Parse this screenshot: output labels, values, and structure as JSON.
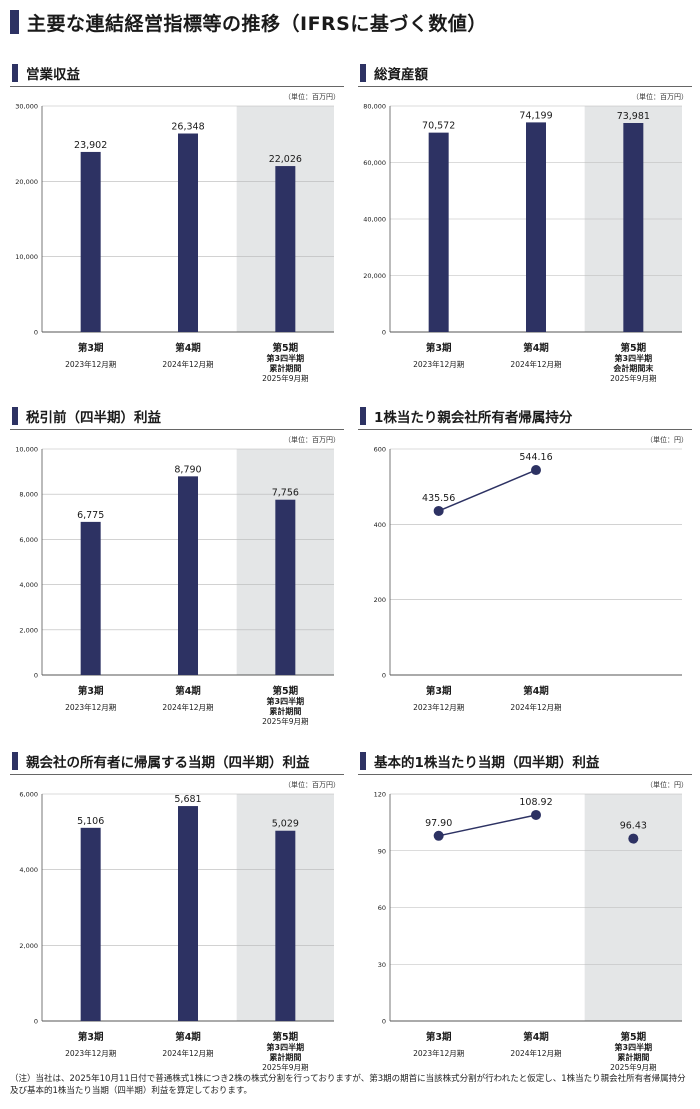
{
  "page_title": "主要な連結経営指標等の推移（IFRSに基づく数値）",
  "footnote": "（注）当社は、2025年10月11日付で普通株式1株につき2株の株式分割を行っておりますが、第3期の期首に当該株式分割が行われたと仮定し、1株当たり親会社所有者帰属持分及び基本的1株当たり当期（四半期）利益を算定しております。",
  "colors": {
    "bar": "#2d3263",
    "shade": "#e4e6e7",
    "grid": "#b8b8b8",
    "title_bar": "#2d3263"
  },
  "chart_data": [
    {
      "id": "revenue",
      "type": "bar",
      "title": "営業収益",
      "unit": "（単位：百万円）",
      "categories": [
        [
          "第3期",
          "2023年12月期"
        ],
        [
          "第4期",
          "2024年12月期"
        ],
        [
          "第5期",
          "第3四半期",
          "累計期間",
          "2025年9月期"
        ]
      ],
      "values": [
        23902,
        26348,
        22026
      ],
      "value_labels": [
        "23,902",
        "26,348",
        "22,026"
      ],
      "ylim": [
        0,
        30000
      ],
      "yticks": [
        0,
        10000,
        20000,
        30000
      ],
      "ytick_labels": [
        "0",
        "10,000",
        "20,000",
        "30,000"
      ],
      "shaded_category": 2
    },
    {
      "id": "total-assets",
      "type": "bar",
      "title": "総資産額",
      "unit": "（単位：百万円）",
      "categories": [
        [
          "第3期",
          "2023年12月期"
        ],
        [
          "第4期",
          "2024年12月期"
        ],
        [
          "第5期",
          "第3四半期",
          "会計期間末",
          "2025年9月期"
        ]
      ],
      "values": [
        70572,
        74199,
        73981
      ],
      "value_labels": [
        "70,572",
        "74,199",
        "73,981"
      ],
      "ylim": [
        0,
        80000
      ],
      "yticks": [
        0,
        20000,
        40000,
        60000,
        80000
      ],
      "ytick_labels": [
        "0",
        "20,000",
        "40,000",
        "60,000",
        "80,000"
      ],
      "shaded_category": 2
    },
    {
      "id": "pretax-profit",
      "type": "bar",
      "title": "税引前（四半期）利益",
      "unit": "（単位：百万円）",
      "categories": [
        [
          "第3期",
          "2023年12月期"
        ],
        [
          "第4期",
          "2024年12月期"
        ],
        [
          "第5期",
          "第3四半期",
          "累計期間",
          "2025年9月期"
        ]
      ],
      "values": [
        6775,
        8790,
        7756
      ],
      "value_labels": [
        "6,775",
        "8,790",
        "7,756"
      ],
      "ylim": [
        0,
        10000
      ],
      "yticks": [
        0,
        2000,
        4000,
        6000,
        8000,
        10000
      ],
      "ytick_labels": [
        "0",
        "2,000",
        "4,000",
        "6,000",
        "8,000",
        "10,000"
      ],
      "shaded_category": 2
    },
    {
      "id": "bps",
      "type": "line",
      "title": "1株当たり親会社所有者帰属持分",
      "unit": "（単位：円）",
      "categories": [
        [
          "第3期",
          "2023年12月期"
        ],
        [
          "第4期",
          "2024年12月期"
        ]
      ],
      "n_slots": 3,
      "values": [
        435.56,
        544.16
      ],
      "value_labels": [
        "435.56",
        "544.16"
      ],
      "connect": [
        0,
        1
      ],
      "ylim": [
        0,
        600
      ],
      "yticks": [
        0,
        200,
        400,
        600
      ],
      "ytick_labels": [
        "0",
        "200",
        "400",
        "600"
      ],
      "shaded_category": null
    },
    {
      "id": "net-profit",
      "type": "bar",
      "title": "親会社の所有者に帰属する当期（四半期）利益",
      "unit": "（単位：百万円）",
      "categories": [
        [
          "第3期",
          "2023年12月期"
        ],
        [
          "第4期",
          "2024年12月期"
        ],
        [
          "第5期",
          "第3四半期",
          "累計期間",
          "2025年9月期"
        ]
      ],
      "values": [
        5106,
        5681,
        5029
      ],
      "value_labels": [
        "5,106",
        "5,681",
        "5,029"
      ],
      "ylim": [
        0,
        6000
      ],
      "yticks": [
        0,
        2000,
        4000,
        6000
      ],
      "ytick_labels": [
        "0",
        "2,000",
        "4,000",
        "6,000"
      ],
      "shaded_category": 2
    },
    {
      "id": "eps",
      "type": "line",
      "title": "基本的1株当たり当期（四半期）利益",
      "unit": "（単位：円）",
      "categories": [
        [
          "第3期",
          "2023年12月期"
        ],
        [
          "第4期",
          "2024年12月期"
        ],
        [
          "第5期",
          "第3四半期",
          "累計期間",
          "2025年9月期"
        ]
      ],
      "n_slots": 3,
      "values": [
        97.9,
        108.92,
        96.43
      ],
      "value_labels": [
        "97.90",
        "108.92",
        "96.43"
      ],
      "connect": [
        0,
        1
      ],
      "ylim": [
        0,
        120
      ],
      "yticks": [
        0,
        30,
        60,
        90,
        120
      ],
      "ytick_labels": [
        "0",
        "30",
        "60",
        "90",
        "120"
      ],
      "shaded_category": 2
    }
  ]
}
